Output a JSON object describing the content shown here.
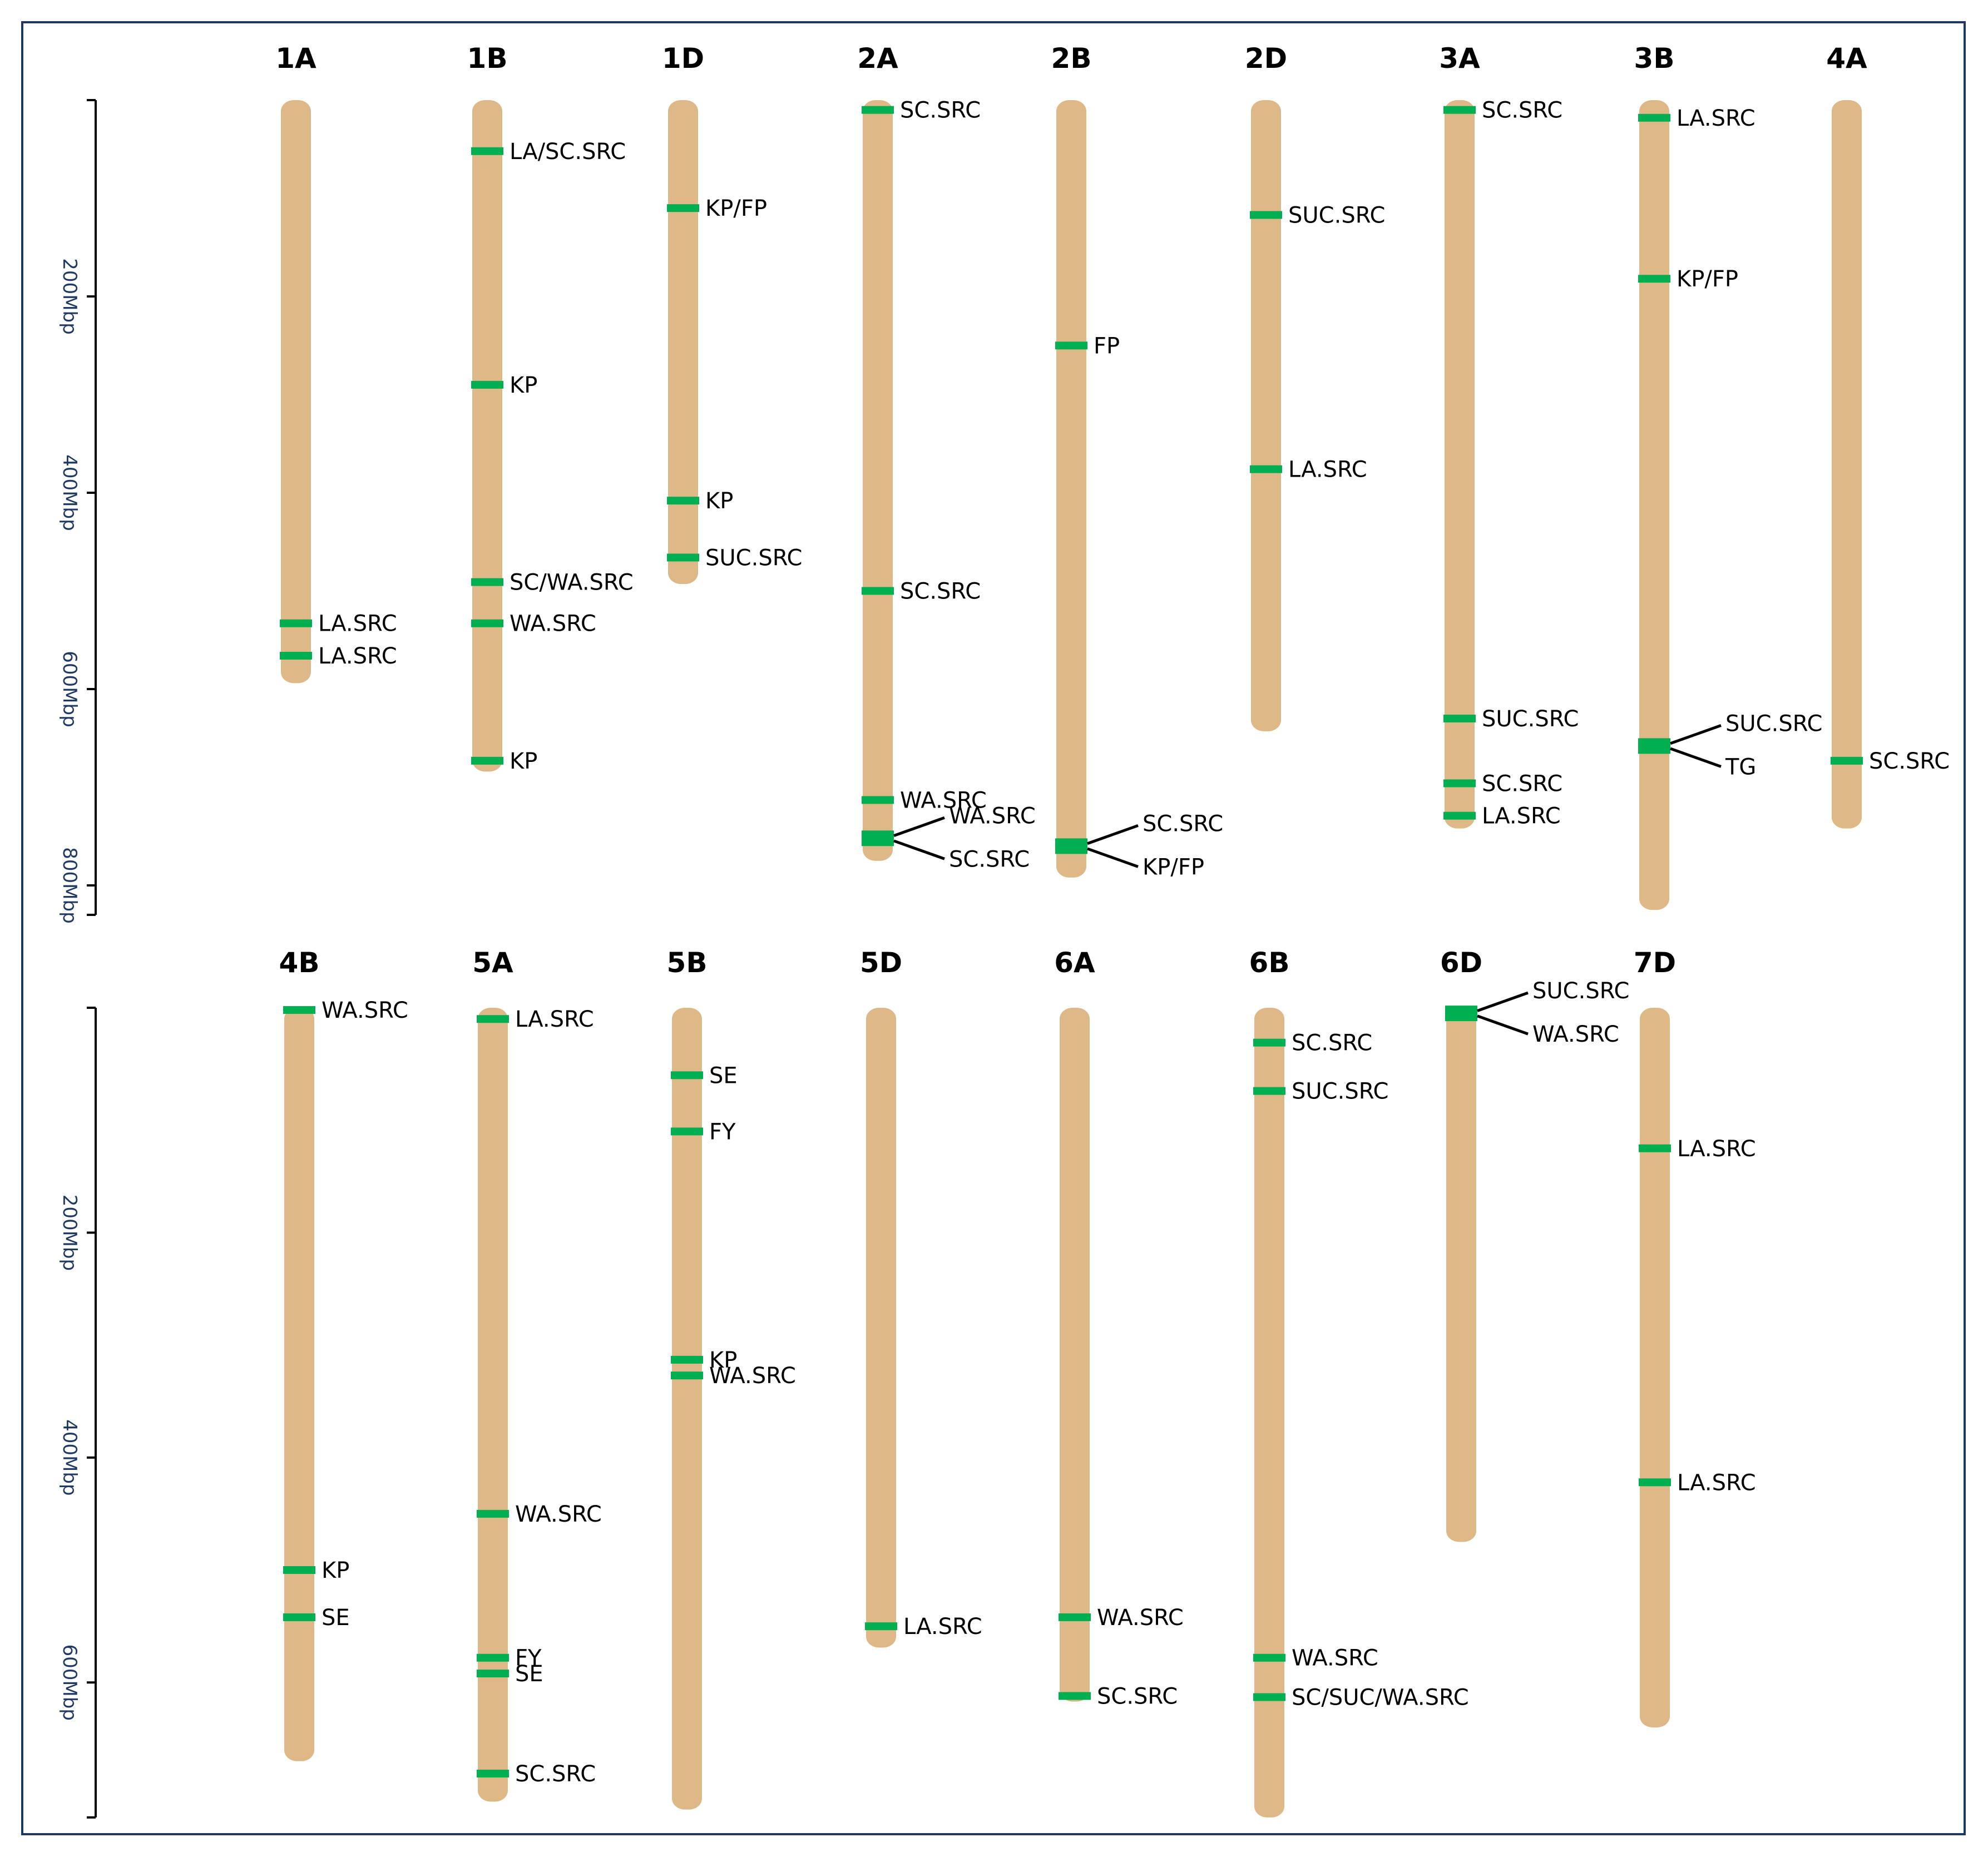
{
  "colors": {
    "chromosome": "#deb887",
    "marker": "#00b050",
    "frame": "#1f3864",
    "axis": "#000000",
    "axis_text": "#1f3864"
  },
  "panels": [
    {
      "axis": {
        "max_mbp": 830,
        "ticks": [
          {
            "value": 200,
            "label": "200Mbp"
          },
          {
            "value": 400,
            "label": "400Mbp"
          },
          {
            "value": 600,
            "label": "600Mbp"
          },
          {
            "value": 800,
            "label": "800Mbp"
          }
        ]
      },
      "chromosomes": [
        {
          "name": "1A",
          "length": 594,
          "markers": [
            {
              "pos": 533,
              "label": "LA.SRC"
            },
            {
              "pos": 566,
              "label": "LA.SRC"
            }
          ]
        },
        {
          "name": "1B",
          "length": 684,
          "markers": [
            {
              "pos": 52,
              "label": "LA/SC.SRC"
            },
            {
              "pos": 290,
              "label": "KP"
            },
            {
              "pos": 491,
              "label": "SC/WA.SRC"
            },
            {
              "pos": 533,
              "label": "WA.SRC"
            },
            {
              "pos": 673,
              "label": "KP"
            }
          ]
        },
        {
          "name": "1D",
          "length": 493,
          "markers": [
            {
              "pos": 110,
              "label": "KP/FP"
            },
            {
              "pos": 408,
              "label": "KP"
            },
            {
              "pos": 466,
              "label": "SUC.SRC"
            }
          ]
        },
        {
          "name": "2A",
          "length": 775,
          "markers": [
            {
              "pos": 10,
              "label": "SC.SRC"
            },
            {
              "pos": 500,
              "label": "SC.SRC"
            },
            {
              "pos": 713,
              "label": "WA.SRC"
            },
            {
              "pos": 752,
              "label": "WA.SRC"
            },
            {
              "pos": 752,
              "label": "SC.SRC"
            }
          ]
        },
        {
          "name": "2B",
          "length": 792,
          "markers": [
            {
              "pos": 250,
              "label": "FP"
            },
            {
              "pos": 760,
              "label": "SC.SRC"
            },
            {
              "pos": 760,
              "label": "KP/FP"
            }
          ]
        },
        {
          "name": "2D",
          "length": 643,
          "markers": [
            {
              "pos": 117,
              "label": "SUC.SRC"
            },
            {
              "pos": 376,
              "label": "LA.SRC"
            }
          ]
        },
        {
          "name": "3A",
          "length": 742,
          "markers": [
            {
              "pos": 10,
              "label": "SC.SRC"
            },
            {
              "pos": 630,
              "label": "SUC.SRC"
            },
            {
              "pos": 696,
              "label": "SC.SRC"
            },
            {
              "pos": 729,
              "label": "LA.SRC"
            }
          ]
        },
        {
          "name": "3B",
          "length": 825,
          "markers": [
            {
              "pos": 18,
              "label": "LA.SRC"
            },
            {
              "pos": 182,
              "label": "KP/FP"
            },
            {
              "pos": 658,
              "label": "SUC.SRC"
            },
            {
              "pos": 658,
              "label": "TG"
            }
          ]
        },
        {
          "name": "4A",
          "length": 742,
          "markers": [
            {
              "pos": 673,
              "label": "SC.SRC"
            }
          ]
        }
      ]
    },
    {
      "axis": {
        "max_mbp": 720,
        "ticks": [
          {
            "value": 200,
            "label": "200Mbp"
          },
          {
            "value": 400,
            "label": "400Mbp"
          },
          {
            "value": 600,
            "label": "600Mbp"
          }
        ]
      },
      "chromosomes": [
        {
          "name": "4B",
          "length": 670,
          "markers": [
            {
              "pos": 2,
              "label": "WA.SRC"
            },
            {
              "pos": 500,
              "label": "KP"
            },
            {
              "pos": 542,
              "label": "SE"
            }
          ]
        },
        {
          "name": "5A",
          "length": 706,
          "markers": [
            {
              "pos": 10,
              "label": "LA.SRC"
            },
            {
              "pos": 450,
              "label": "WA.SRC"
            },
            {
              "pos": 578,
              "label": "FY"
            },
            {
              "pos": 592,
              "label": "SE"
            },
            {
              "pos": 681,
              "label": "SC.SRC"
            }
          ]
        },
        {
          "name": "5B",
          "length": 713,
          "markers": [
            {
              "pos": 60,
              "label": "SE"
            },
            {
              "pos": 110,
              "label": "FY"
            },
            {
              "pos": 313,
              "label": "KP"
            },
            {
              "pos": 327,
              "label": "WA.SRC"
            }
          ]
        },
        {
          "name": "5D",
          "length": 569,
          "markers": [
            {
              "pos": 550,
              "label": "LA.SRC"
            }
          ]
        },
        {
          "name": "6A",
          "length": 617,
          "markers": [
            {
              "pos": 542,
              "label": "WA.SRC"
            },
            {
              "pos": 612,
              "label": "SC.SRC"
            }
          ]
        },
        {
          "name": "6B",
          "length": 720,
          "markers": [
            {
              "pos": 31,
              "label": "SC.SRC"
            },
            {
              "pos": 74,
              "label": "SUC.SRC"
            },
            {
              "pos": 578,
              "label": "WA.SRC"
            },
            {
              "pos": 613,
              "label": "SC/SUC/WA.SRC"
            }
          ]
        },
        {
          "name": "6D",
          "length": 475,
          "markers": [
            {
              "pos": 5,
              "label": "SUC.SRC"
            },
            {
              "pos": 5,
              "label": "WA.SRC"
            }
          ]
        },
        {
          "name": "7D",
          "length": 640,
          "markers": [
            {
              "pos": 125,
              "label": "LA.SRC"
            },
            {
              "pos": 422,
              "label": "LA.SRC"
            }
          ]
        }
      ]
    }
  ]
}
